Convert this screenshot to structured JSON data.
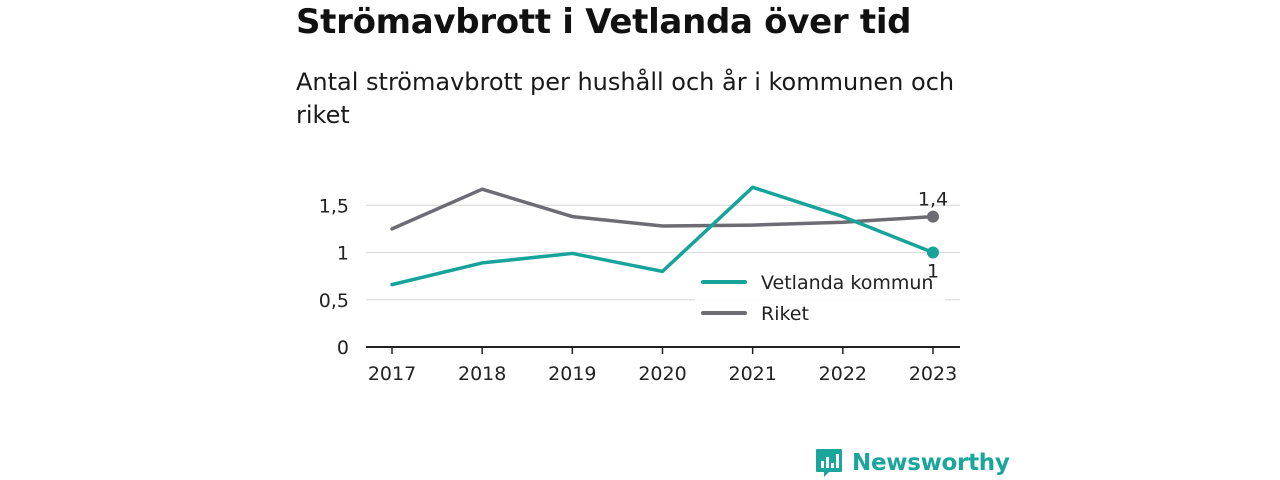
{
  "title": "Strömavbrott i Vetlanda över tid",
  "subtitle": "Antal strömavbrott per hushåll och år i kommunen och riket",
  "logo_text": "Newsworthy",
  "chart_data": {
    "type": "line",
    "x": [
      "2017",
      "2018",
      "2019",
      "2020",
      "2021",
      "2022",
      "2023"
    ],
    "ylim": [
      0,
      1.9
    ],
    "yticks": [
      0,
      0.5,
      1,
      1.5
    ],
    "ytick_labels": [
      "0",
      "0,5",
      "1",
      "1,5"
    ],
    "grid": true,
    "legend_position": "bottom-right",
    "series": [
      {
        "name": "Vetlanda kommun",
        "color": "#15a39a",
        "values": [
          0.66,
          0.89,
          0.99,
          0.8,
          1.69,
          1.38,
          1.0
        ],
        "end_label": "1"
      },
      {
        "name": "Riket",
        "color": "#6d6c73",
        "values": [
          1.25,
          1.67,
          1.38,
          1.28,
          1.29,
          1.32,
          1.38
        ],
        "end_label": "1,4"
      }
    ]
  }
}
